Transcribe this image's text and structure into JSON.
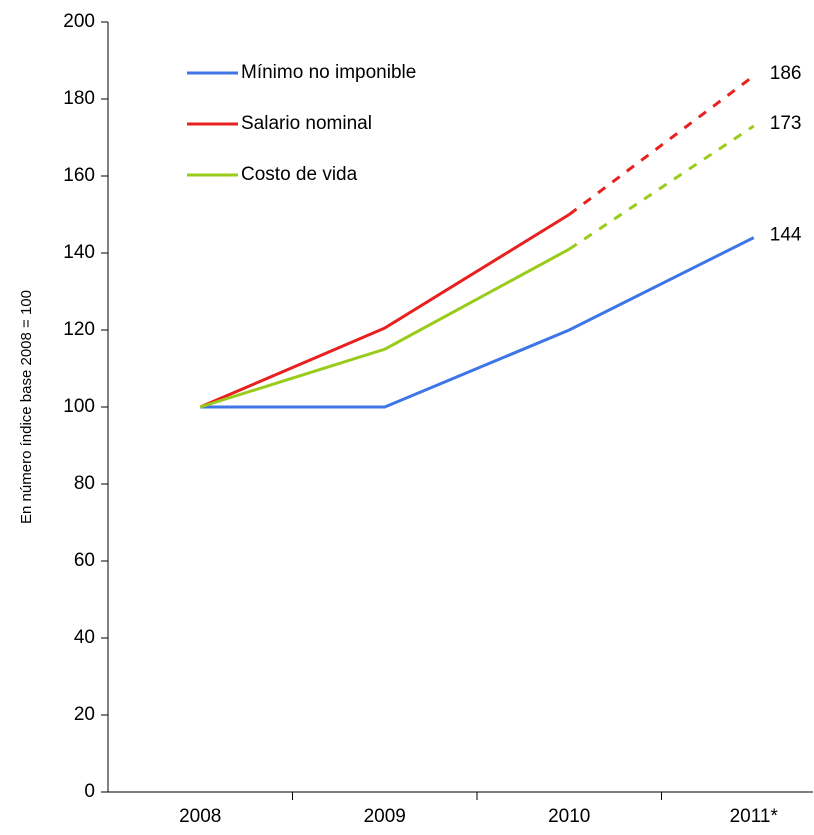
{
  "chart_data": {
    "type": "line",
    "y_label": "En número índice base 2008 = 100",
    "categories": [
      "2008",
      "2009",
      "2010",
      "2011*"
    ],
    "series": [
      {
        "name": "Mínimo no imponible",
        "color": "#3f76e6",
        "values": [
          100,
          100,
          120,
          144
        ],
        "dashed_last_segment": false
      },
      {
        "name": "Salario nominal",
        "color": "#e8201f",
        "values": [
          100,
          120.5,
          150,
          186
        ],
        "dashed_last_segment": true
      },
      {
        "name": "Costo de vida",
        "color": "#99cc1a",
        "values": [
          100,
          115,
          141,
          173
        ],
        "dashed_last_segment": true
      }
    ],
    "label_last_value": true,
    "ylim": [
      0,
      200
    ],
    "yticks": [
      0,
      20,
      40,
      60,
      80,
      100,
      120,
      140,
      160,
      180,
      200
    ],
    "grid": false,
    "legend": "top-left"
  }
}
